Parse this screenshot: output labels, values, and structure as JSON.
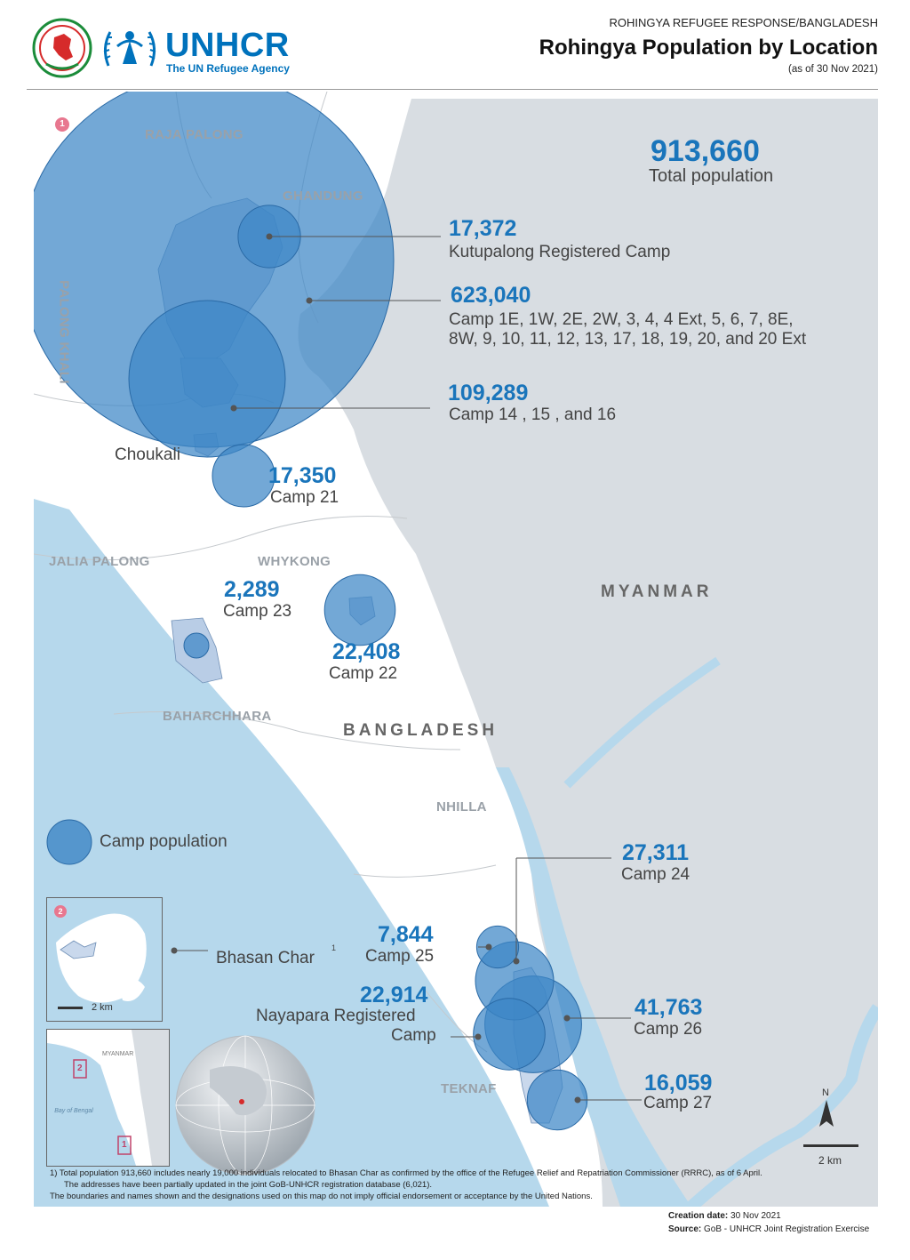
{
  "header": {
    "supertitle": "ROHINGYA REFUGEE RESPONSE/BANGLADESH",
    "title": "Rohingya Population by Location",
    "date": "(as of 30 Nov  2021)",
    "org_name": "UNHCR",
    "org_tagline": "The UN Refugee Agency"
  },
  "total": {
    "value": "913,660",
    "label": "Total population"
  },
  "camps": [
    {
      "value": "17,372",
      "label": "Kutupalong Registered Camp",
      "population": 17372
    },
    {
      "value": "623,040",
      "label_line1": "Camp 1E, 1W, 2E, 2W, 3, 4, 4 Ext, 5, 6, 7, 8E,",
      "label_line2": "8W, 9, 10, 11, 12, 13, 17, 18, 19, 20, and 20 Ext",
      "population": 623040
    },
    {
      "value": "109,289",
      "label": "Camp 14 , 15 , and 16",
      "population": 109289
    },
    {
      "value": "17,350",
      "label": "Camp 21",
      "population": 17350
    },
    {
      "value": "2,289",
      "label": "Camp 23",
      "population": 2289
    },
    {
      "value": "22,408",
      "label": "Camp 22",
      "population": 22408
    },
    {
      "value": "27,311",
      "label": "Camp 24",
      "population": 27311
    },
    {
      "value": "7,844",
      "label": "Camp 25",
      "population": 7844
    },
    {
      "value": "22,914",
      "label_line1": "Nayapara Registered",
      "label_line2": "Camp",
      "population": 22914
    },
    {
      "value": "41,763",
      "label": "Camp 26",
      "population": 41763
    },
    {
      "value": "16,059",
      "label": "Camp 27",
      "population": 16059
    }
  ],
  "areas": {
    "raja_palong": "RAJA PALONG",
    "ghandung": "GHANDUNG",
    "palong_khali": "PALONG KHALI",
    "jalia_palong": "JALIA PALONG",
    "whykong": "WHYKONG",
    "baharchhara": "BAHARCHHARA",
    "nhilla": "NHILLA",
    "teknaf": "TEKNAF"
  },
  "countries": {
    "myanmar": "MYANMAR",
    "bangladesh": "BANGLADESH"
  },
  "towns": {
    "choukali": "Choukali"
  },
  "legend": {
    "camp_population": "Camp population"
  },
  "inset": {
    "marker1": "1",
    "marker2": "2",
    "bhasan_char": "Bhasan Char",
    "bhasan_note": "1",
    "scale": "2 km",
    "locator_myanmar": "MYANMAR",
    "locator_bay": "Bay of Bengal",
    "locator_box1": "1",
    "locator_box2": "2"
  },
  "scale_bar": "2 km",
  "north_label": "N",
  "footnotes": {
    "line1": "1) Total population 913,660 includes nearly 19,000 individuals relocated to Bhasan Char as confirmed by the office of the Refugee Relief and Repatriation Commissioner (RRRC), as of 6 April.",
    "line2": "The addresses have been partially updated in the joint GoB-UNHCR registration database (6,021).",
    "line3": "The boundaries and names shown and the designations used on this map do not imply official endorsement or acceptance by the United Nations."
  },
  "credits": {
    "creation_label": "Creation date:",
    "creation_value": "30 Nov 2021",
    "source_label": "Source:",
    "source_value": "GoB - UNHCR Joint Registration Exercise"
  },
  "colors": {
    "water": "#b6d8ec",
    "myanmar_land": "#d8dde2",
    "camp_circle": "#3d86c6",
    "accent_blue": "#1a75bb",
    "marker_pink": "#e8778f"
  }
}
